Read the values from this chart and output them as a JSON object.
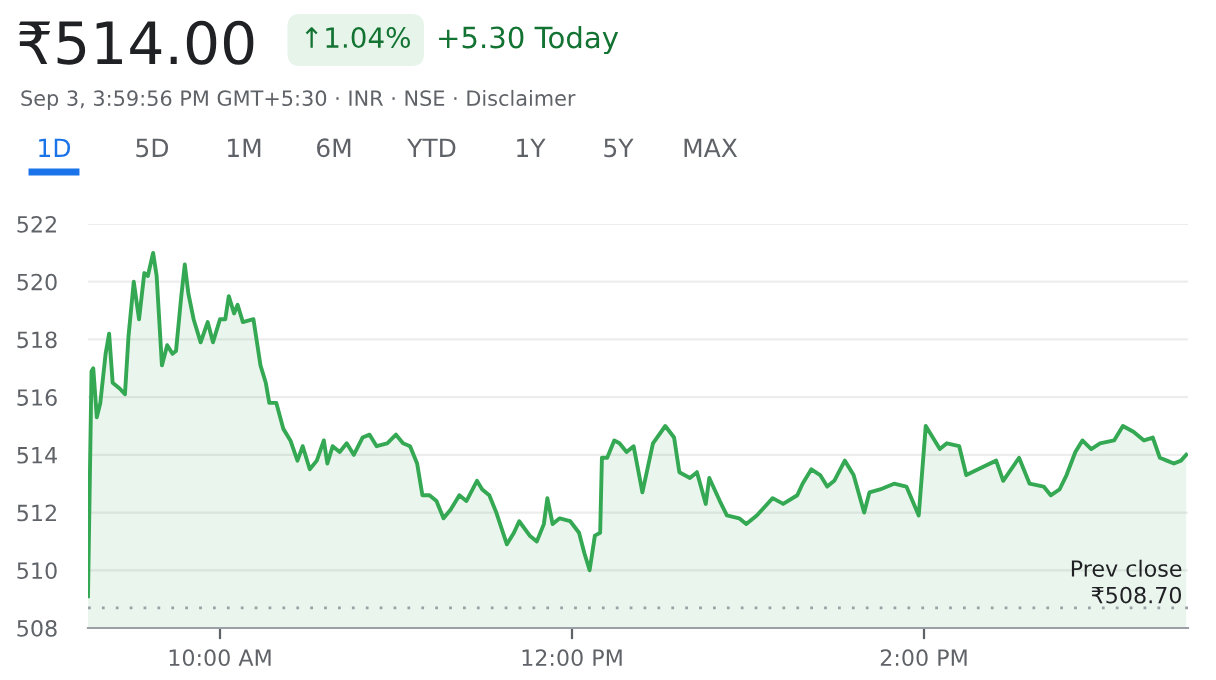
{
  "chart_data": {
    "type": "area",
    "title": "₹514.00",
    "annotations": [
      "↑1.04%",
      "+5.30 Today",
      "Sep 3, 3:59:56 PM GMT+5:30 · INR · NSE · Disclaimer",
      "1D",
      "5D",
      "1M",
      "6M",
      "YTD",
      "1Y",
      "5Y",
      "MAX"
    ],
    "series": [
      {
        "color": "#34a853",
        "x": [
          9.25,
          9.27,
          9.28,
          9.3,
          9.32,
          9.35,
          9.37,
          9.39,
          9.43,
          9.46,
          9.48,
          9.51,
          9.54,
          9.57,
          9.59,
          9.62,
          9.64,
          9.67,
          9.7,
          9.73,
          9.75,
          9.78,
          9.8,
          9.82,
          9.85,
          9.89,
          9.93,
          9.96,
          10.0,
          10.03,
          10.05,
          10.08,
          10.1,
          10.13,
          10.19,
          10.23,
          10.26,
          10.28,
          10.32,
          10.36,
          10.4,
          10.44,
          10.47,
          10.51,
          10.55,
          10.59,
          10.61,
          10.64,
          10.68,
          10.72,
          10.76,
          10.81,
          10.85,
          10.89,
          10.95,
          11.0,
          11.04,
          11.08,
          11.12,
          11.15,
          11.19,
          11.23,
          11.27,
          11.31,
          11.36,
          11.4,
          11.46,
          11.49,
          11.53,
          11.57,
          11.63,
          11.67,
          11.7,
          11.76,
          11.8,
          11.84,
          11.86,
          11.89,
          11.93,
          11.99,
          12.04,
          12.07,
          12.1,
          12.13,
          12.16,
          12.17,
          12.2,
          12.24,
          12.27,
          12.31,
          12.35,
          12.4,
          12.46,
          12.53,
          12.58,
          12.61,
          12.67,
          12.71,
          12.76,
          12.78,
          12.84,
          12.88,
          12.95,
          12.99,
          13.05,
          13.14,
          13.2,
          13.28,
          13.31,
          13.36,
          13.41,
          13.45,
          13.49,
          13.55,
          13.6,
          13.66,
          13.69,
          13.75,
          13.83,
          13.9,
          13.97,
          14.01,
          14.09,
          14.13,
          14.2,
          14.24,
          14.34,
          14.41,
          14.45,
          14.54,
          14.6,
          14.68,
          14.72,
          14.77,
          14.81,
          14.86,
          14.9,
          14.95,
          15.0,
          15.08,
          15.13,
          15.19,
          15.25,
          15.3,
          15.34,
          15.38,
          15.42,
          15.46,
          15.49
        ],
        "values": [
          509.1,
          516.9,
          517.0,
          515.3,
          515.8,
          517.5,
          518.2,
          516.5,
          516.3,
          516.1,
          518.1,
          520.0,
          518.7,
          520.3,
          520.2,
          521.0,
          520.2,
          517.1,
          517.8,
          517.5,
          517.6,
          519.5,
          520.6,
          519.6,
          518.7,
          517.9,
          518.6,
          517.9,
          518.7,
          518.7,
          519.5,
          518.9,
          519.2,
          518.6,
          518.7,
          517.1,
          516.5,
          515.8,
          515.8,
          514.9,
          514.5,
          513.8,
          514.3,
          513.5,
          513.8,
          514.5,
          513.7,
          514.3,
          514.1,
          514.4,
          514.0,
          514.6,
          514.7,
          514.3,
          514.4,
          514.7,
          514.4,
          514.3,
          513.7,
          512.6,
          512.6,
          512.4,
          511.8,
          512.1,
          512.6,
          512.4,
          513.1,
          512.8,
          512.6,
          512.0,
          510.9,
          511.3,
          511.7,
          511.2,
          511.0,
          511.6,
          512.5,
          511.6,
          511.8,
          511.7,
          511.3,
          510.6,
          510.0,
          511.2,
          511.3,
          513.9,
          513.9,
          514.5,
          514.4,
          514.1,
          514.3,
          512.7,
          514.4,
          515.0,
          514.6,
          513.4,
          513.2,
          513.4,
          512.3,
          513.2,
          512.4,
          511.9,
          511.8,
          511.6,
          511.9,
          512.5,
          512.3,
          512.6,
          513.0,
          513.5,
          513.3,
          512.9,
          513.1,
          513.8,
          513.3,
          512.0,
          512.7,
          512.8,
          513.0,
          512.9,
          511.9,
          515.0,
          514.2,
          514.4,
          514.3,
          513.3,
          513.6,
          513.8,
          513.1,
          513.9,
          513.0,
          512.9,
          512.6,
          512.8,
          513.3,
          514.1,
          514.5,
          514.2,
          514.4,
          514.5,
          515.0,
          514.8,
          514.5,
          514.6,
          513.9,
          513.8,
          513.7,
          513.8,
          514.0
        ]
      }
    ],
    "xlim": [
      9.25,
      15.5
    ],
    "xticks": [
      {
        "value": 10,
        "label": "10:00 AM"
      },
      {
        "value": 12,
        "label": "12:00 PM"
      },
      {
        "value": 14,
        "label": "2:00 PM"
      }
    ],
    "ylim": [
      508,
      522
    ],
    "yticks": [
      508,
      510,
      512,
      514,
      516,
      518,
      520,
      522
    ],
    "grid": "y",
    "ref_lines": [
      {
        "axis": "y",
        "value": 508.7,
        "label": "Prev close\n₹508.70",
        "color": "#9aa0a6",
        "line_style": "dotted"
      }
    ]
  }
}
